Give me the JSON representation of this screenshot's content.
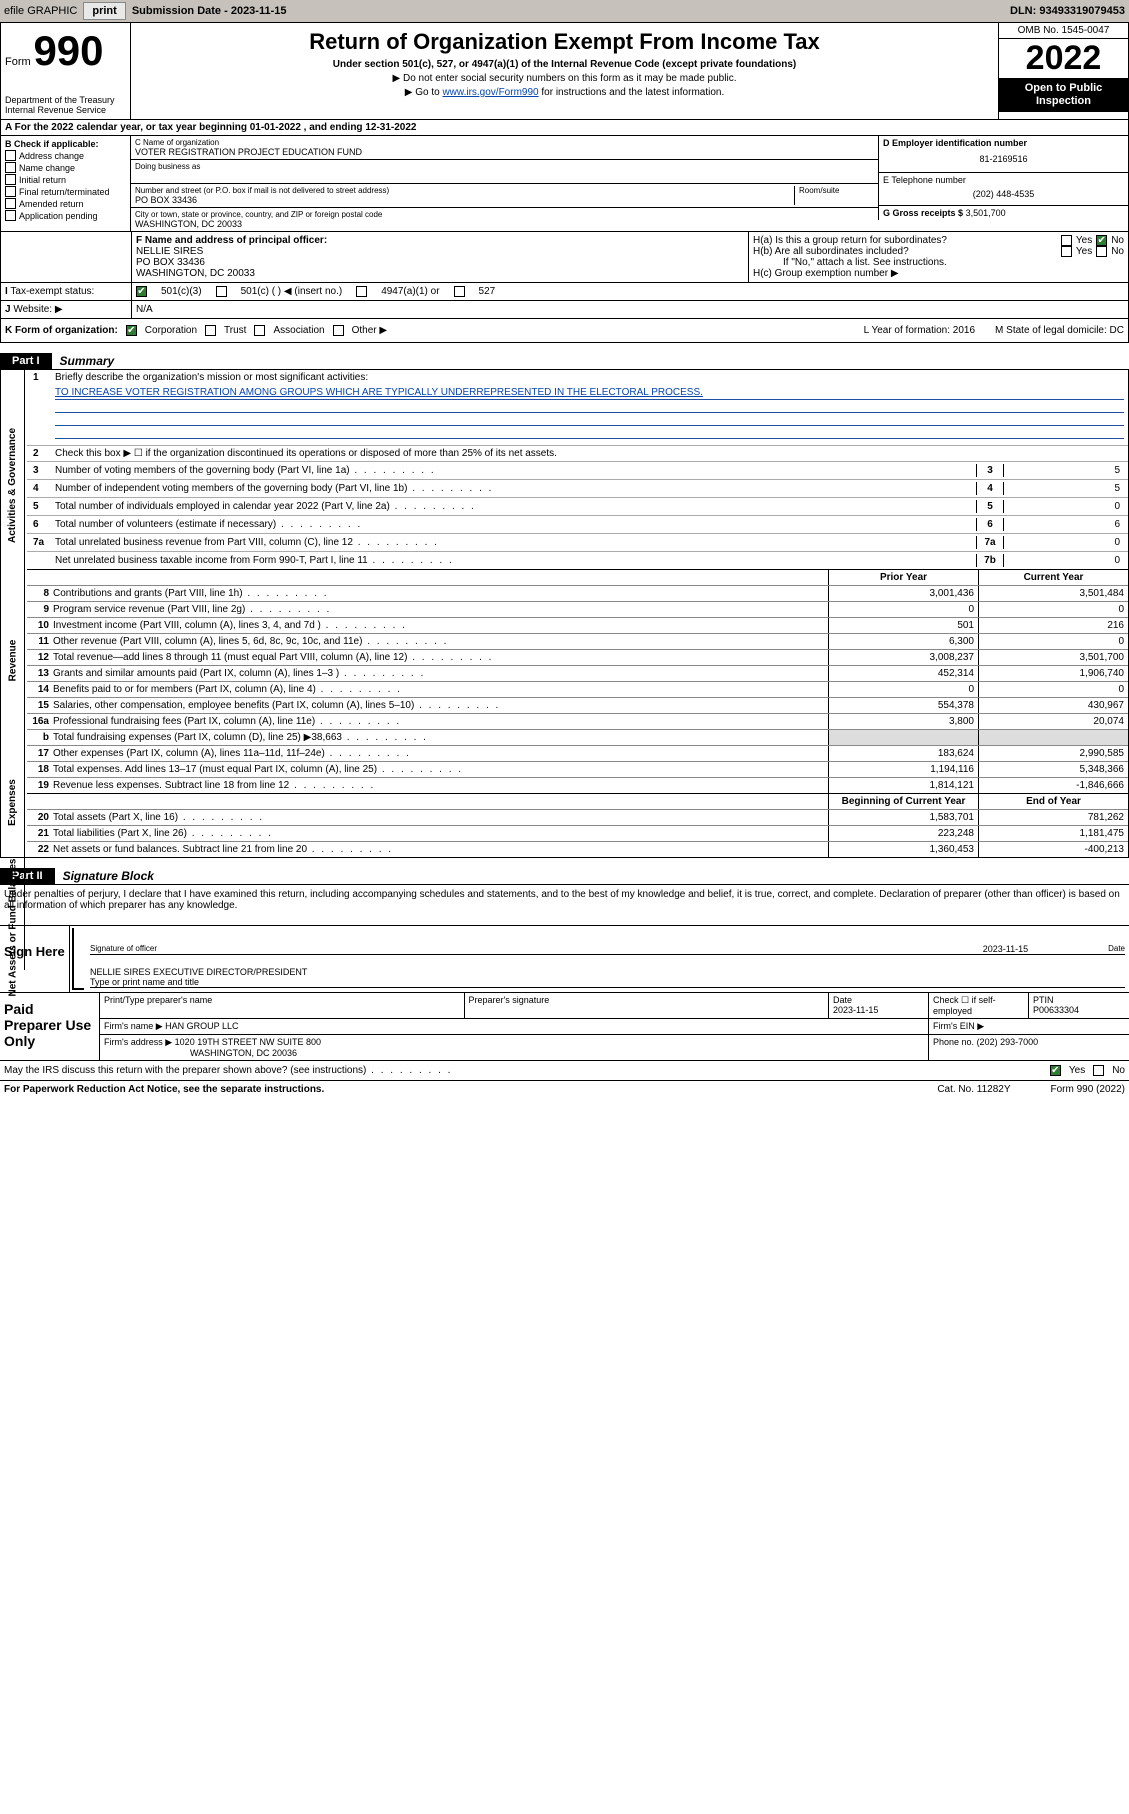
{
  "topbar": {
    "efile": "efile GRAPHIC",
    "print": "print",
    "subdate_label": "Submission Date - 2023-11-15",
    "dln": "DLN: 93493319079453"
  },
  "header": {
    "form_word": "Form",
    "form_num": "990",
    "dept": "Department of the Treasury Internal Revenue Service",
    "title": "Return of Organization Exempt From Income Tax",
    "sub": "Under section 501(c), 527, or 4947(a)(1) of the Internal Revenue Code (except private foundations)",
    "note1": "▶ Do not enter social security numbers on this form as it may be made public.",
    "note2_pre": "▶ Go to ",
    "note2_link": "www.irs.gov/Form990",
    "note2_post": " for instructions and the latest information.",
    "omb": "OMB No. 1545-0047",
    "year": "2022",
    "inspect": "Open to Public Inspection"
  },
  "A": {
    "text": "A For the 2022 calendar year, or tax year beginning 01-01-2022   , and ending 12-31-2022"
  },
  "B": {
    "hdr": "B Check if applicable:",
    "opts": [
      "Address change",
      "Name change",
      "Initial return",
      "Final return/terminated",
      "Amended return",
      "Application pending"
    ]
  },
  "C": {
    "name_lbl": "C Name of organization",
    "name": "VOTER REGISTRATION PROJECT EDUCATION FUND",
    "dba_lbl": "Doing business as",
    "addr_lbl": "Number and street (or P.O. box if mail is not delivered to street address)",
    "room_lbl": "Room/suite",
    "addr": "PO BOX 33436",
    "city_lbl": "City or town, state or province, country, and ZIP or foreign postal code",
    "city": "WASHINGTON, DC  20033"
  },
  "D": {
    "lbl": "D Employer identification number",
    "val": "81-2169516"
  },
  "E": {
    "lbl": "E Telephone number",
    "val": "(202) 448-4535"
  },
  "G": {
    "lbl": "G Gross receipts $",
    "val": "3,501,700"
  },
  "F": {
    "lbl": "F Name and address of principal officer:",
    "name": "NELLIE SIRES",
    "addr1": "PO BOX 33436",
    "addr2": "WASHINGTON, DC  20033"
  },
  "H": {
    "a": "H(a)  Is this a group return for subordinates?",
    "b": "H(b)  Are all subordinates included?",
    "bnote": "If \"No,\" attach a list. See instructions.",
    "c": "H(c)  Group exemption number ▶",
    "yes": "Yes",
    "no": "No"
  },
  "I": {
    "lbl": "Tax-exempt status:",
    "o1": "501(c)(3)",
    "o2": "501(c) (  ) ◀ (insert no.)",
    "o3": "4947(a)(1) or",
    "o4": "527"
  },
  "J": {
    "lbl": "Website: ▶",
    "val": "N/A"
  },
  "K": {
    "lbl": "K Form of organization:",
    "o1": "Corporation",
    "o2": "Trust",
    "o3": "Association",
    "o4": "Other ▶"
  },
  "L": {
    "lbl": "L Year of formation: 2016"
  },
  "M": {
    "lbl": "M State of legal domicile: DC"
  },
  "part1": {
    "tag": "Part I",
    "title": "Summary"
  },
  "summary": {
    "q1": "Briefly describe the organization's mission or most significant activities:",
    "mission": "TO INCREASE VOTER REGISTRATION AMONG GROUPS WHICH ARE TYPICALLY UNDERREPRESENTED IN THE ELECTORAL PROCESS.",
    "q2": "Check this box ▶ ☐  if the organization discontinued its operations or disposed of more than 25% of its net assets.",
    "lines_gov": [
      {
        "n": "3",
        "t": "Number of voting members of the governing body (Part VI, line 1a)",
        "b": "3",
        "v": "5"
      },
      {
        "n": "4",
        "t": "Number of independent voting members of the governing body (Part VI, line 1b)",
        "b": "4",
        "v": "5"
      },
      {
        "n": "5",
        "t": "Total number of individuals employed in calendar year 2022 (Part V, line 2a)",
        "b": "5",
        "v": "0"
      },
      {
        "n": "6",
        "t": "Total number of volunteers (estimate if necessary)",
        "b": "6",
        "v": "6"
      },
      {
        "n": "7a",
        "t": "Total unrelated business revenue from Part VIII, column (C), line 12",
        "b": "7a",
        "v": "0"
      },
      {
        "n": "",
        "t": "Net unrelated business taxable income from Form 990-T, Part I, line 11",
        "b": "7b",
        "v": "0"
      }
    ],
    "col_prior": "Prior Year",
    "col_curr": "Current Year",
    "revenue": [
      {
        "n": "8",
        "t": "Contributions and grants (Part VIII, line 1h)",
        "p": "3,001,436",
        "c": "3,501,484"
      },
      {
        "n": "9",
        "t": "Program service revenue (Part VIII, line 2g)",
        "p": "0",
        "c": "0"
      },
      {
        "n": "10",
        "t": "Investment income (Part VIII, column (A), lines 3, 4, and 7d )",
        "p": "501",
        "c": "216"
      },
      {
        "n": "11",
        "t": "Other revenue (Part VIII, column (A), lines 5, 6d, 8c, 9c, 10c, and 11e)",
        "p": "6,300",
        "c": "0"
      },
      {
        "n": "12",
        "t": "Total revenue—add lines 8 through 11 (must equal Part VIII, column (A), line 12)",
        "p": "3,008,237",
        "c": "3,501,700"
      }
    ],
    "expenses": [
      {
        "n": "13",
        "t": "Grants and similar amounts paid (Part IX, column (A), lines 1–3 )",
        "p": "452,314",
        "c": "1,906,740"
      },
      {
        "n": "14",
        "t": "Benefits paid to or for members (Part IX, column (A), line 4)",
        "p": "0",
        "c": "0"
      },
      {
        "n": "15",
        "t": "Salaries, other compensation, employee benefits (Part IX, column (A), lines 5–10)",
        "p": "554,378",
        "c": "430,967"
      },
      {
        "n": "16a",
        "t": "Professional fundraising fees (Part IX, column (A), line 11e)",
        "p": "3,800",
        "c": "20,074"
      },
      {
        "n": "b",
        "t": "Total fundraising expenses (Part IX, column (D), line 25) ▶38,663",
        "p": "",
        "c": "",
        "shade": true
      },
      {
        "n": "17",
        "t": "Other expenses (Part IX, column (A), lines 11a–11d, 11f–24e)",
        "p": "183,624",
        "c": "2,990,585"
      },
      {
        "n": "18",
        "t": "Total expenses. Add lines 13–17 (must equal Part IX, column (A), line 25)",
        "p": "1,194,116",
        "c": "5,348,366"
      },
      {
        "n": "19",
        "t": "Revenue less expenses. Subtract line 18 from line 12",
        "p": "1,814,121",
        "c": "-1,846,666"
      }
    ],
    "col_beg": "Beginning of Current Year",
    "col_end": "End of Year",
    "net": [
      {
        "n": "20",
        "t": "Total assets (Part X, line 16)",
        "p": "1,583,701",
        "c": "781,262"
      },
      {
        "n": "21",
        "t": "Total liabilities (Part X, line 26)",
        "p": "223,248",
        "c": "1,181,475"
      },
      {
        "n": "22",
        "t": "Net assets or fund balances. Subtract line 21 from line 20",
        "p": "1,360,453",
        "c": "-400,213"
      }
    ],
    "tab_gov": "Activities & Governance",
    "tab_rev": "Revenue",
    "tab_exp": "Expenses",
    "tab_net": "Net Assets or Fund Balances"
  },
  "part2": {
    "tag": "Part II",
    "title": "Signature Block"
  },
  "sig": {
    "intro": "Under penalties of perjury, I declare that I have examined this return, including accompanying schedules and statements, and to the best of my knowledge and belief, it is true, correct, and complete. Declaration of preparer (other than officer) is based on all information of which preparer has any knowledge.",
    "sign_here": "Sign Here",
    "sig_officer": "Signature of officer",
    "date_lbl": "Date",
    "date": "2023-11-15",
    "name_title": "NELLIE SIRES  EXECUTIVE DIRECTOR/PRESIDENT",
    "type_lbl": "Type or print name and title"
  },
  "paid": {
    "hdr": "Paid Preparer Use Only",
    "h1": "Print/Type preparer's name",
    "h2": "Preparer's signature",
    "h3": "Date",
    "h3v": "2023-11-15",
    "h4": "Check ☐ if self-employed",
    "h5": "PTIN",
    "h5v": "P00633304",
    "firm_lbl": "Firm's name    ▶",
    "firm": "HAN GROUP LLC",
    "ein_lbl": "Firm's EIN ▶",
    "addr_lbl": "Firm's address ▶",
    "addr1": "1020 19TH STREET NW SUITE 800",
    "addr2": "WASHINGTON, DC  20036",
    "phone_lbl": "Phone no.",
    "phone": "(202) 293-7000"
  },
  "discuss": {
    "q": "May the IRS discuss this return with the preparer shown above? (see instructions)",
    "yes": "Yes",
    "no": "No"
  },
  "footer": {
    "pra": "For Paperwork Reduction Act Notice, see the separate instructions.",
    "cat": "Cat. No. 11282Y",
    "form": "Form 990 (2022)"
  }
}
